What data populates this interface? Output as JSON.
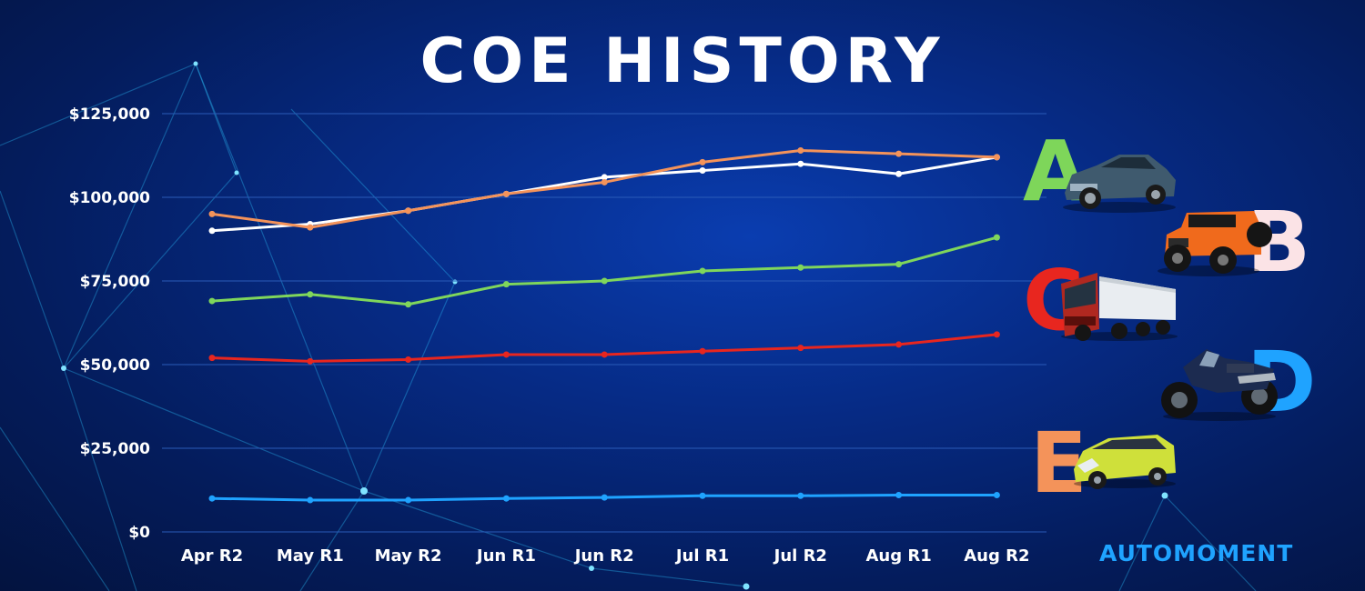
{
  "colors": {
    "cat_a": "#ffffff",
    "cat_b": "#f4935a",
    "cat_c": "#7fd65b",
    "cat_d": "#e8261f",
    "cat_e": "#1fa3ff",
    "grid": "#2a5bb8",
    "letter_a": "#7ed65a",
    "letter_b": "#fbe3e6",
    "letter_c": "#e8261f",
    "letter_d": "#1fa3ff",
    "letter_e": "#f4935a"
  },
  "legend": [
    {
      "letter": "A",
      "icon": "sedan-car-icon"
    },
    {
      "letter": "B",
      "icon": "jeep-suv-icon"
    },
    {
      "letter": "C",
      "icon": "truck-icon"
    },
    {
      "letter": "D",
      "icon": "motorcycle-icon"
    },
    {
      "letter": "E",
      "icon": "minivan-icon"
    }
  ],
  "brand": "AUTOMOMENT",
  "chart_data": {
    "type": "line",
    "title": "COE HISTORY",
    "xlabel": "",
    "ylabel": "",
    "ylim": [
      0,
      125000
    ],
    "yticks": [
      0,
      25000,
      50000,
      75000,
      100000,
      125000
    ],
    "ytick_labels": [
      "$0",
      "$25,000",
      "$50,000",
      "$75,000",
      "$100,000",
      "$125,000"
    ],
    "grid": "horizontal",
    "categories": [
      "Apr R2",
      "May R1",
      "May R2",
      "Jun R1",
      "Jun R2",
      "Jul R1",
      "Jul R2",
      "Aug R1",
      "Aug R2"
    ],
    "series": [
      {
        "key": "cat_a",
        "values": [
          90000,
          92000,
          96000,
          101000,
          106000,
          108000,
          110000,
          107000,
          112000
        ]
      },
      {
        "key": "cat_b",
        "values": [
          95000,
          91000,
          96000,
          101000,
          104500,
          110500,
          114000,
          113000,
          112000
        ]
      },
      {
        "key": "cat_c",
        "values": [
          69000,
          71000,
          68000,
          74000,
          75000,
          78000,
          79000,
          80000,
          88000
        ]
      },
      {
        "key": "cat_d",
        "values": [
          52000,
          51000,
          51500,
          53000,
          53000,
          54000,
          55000,
          56000,
          59000
        ]
      },
      {
        "key": "cat_e",
        "values": [
          10000,
          9500,
          9500,
          10000,
          10300,
          10800,
          10800,
          11000,
          11000
        ]
      }
    ]
  }
}
